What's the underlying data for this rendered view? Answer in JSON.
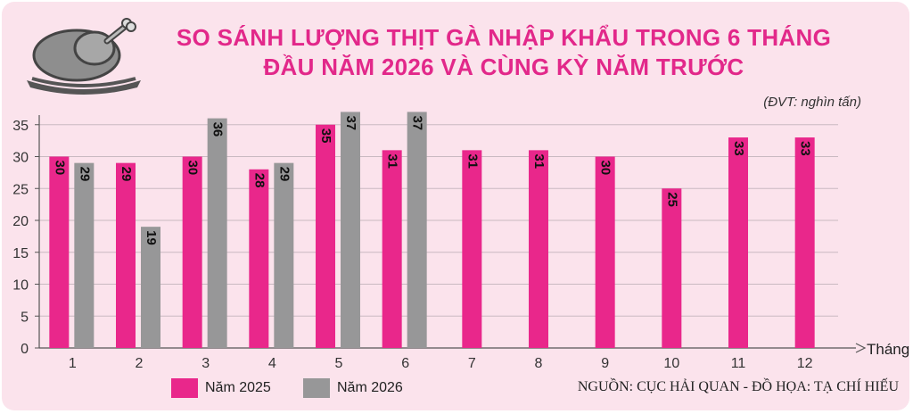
{
  "title_line1": "SO SÁNH LƯỢNG THỊT GÀ NHẬP KHẨU TRONG 6 THÁNG",
  "title_line2": "ĐẦU NĂM 2026 VÀ CÙNG KỲ NĂM TRƯỚC",
  "unit": "(ĐVT: nghìn tấn)",
  "source": "NGUỒN: CỤC HẢI QUAN - ĐỒ HỌA: TẠ CHÍ HIẾU",
  "colors": {
    "pink": "#e9278b",
    "gray": "#979798",
    "background": "#fbe3ec"
  },
  "icon": "roast-chicken-icon",
  "chart_data": {
    "type": "bar",
    "xlabel": "Tháng",
    "ylabel": "",
    "ylim": [
      0,
      35
    ],
    "yticks": [
      0,
      5,
      10,
      15,
      20,
      25,
      30,
      35
    ],
    "categories": [
      "1",
      "2",
      "3",
      "4",
      "5",
      "6",
      "7",
      "8",
      "9",
      "10",
      "11",
      "12"
    ],
    "legend_position": "bottom-left",
    "series": [
      {
        "name": "Năm 2025",
        "color": "#e9278b",
        "values": [
          30,
          29,
          30,
          28,
          35,
          31,
          31,
          31,
          30,
          25,
          33,
          33
        ],
        "labels": [
          "30",
          "29",
          "30",
          "28",
          "35",
          "31",
          "31",
          "31",
          "30",
          "25",
          "33",
          "33"
        ]
      },
      {
        "name": "Năm 2026",
        "color": "#979798",
        "values": [
          29,
          19,
          36,
          29,
          37,
          37,
          null,
          null,
          null,
          null,
          null,
          null
        ],
        "labels": [
          "29",
          "19",
          "36",
          "29",
          "37",
          "37",
          "",
          "",
          "",
          "",
          "",
          ""
        ]
      }
    ]
  }
}
